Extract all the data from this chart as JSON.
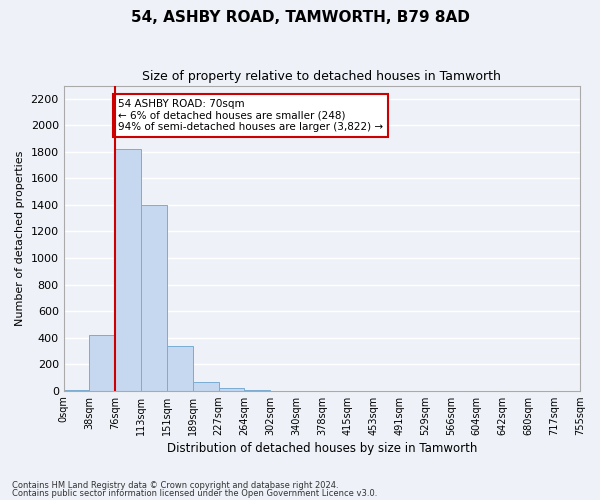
{
  "title": "54, ASHBY ROAD, TAMWORTH, B79 8AD",
  "subtitle": "Size of property relative to detached houses in Tamworth",
  "xlabel": "Distribution of detached houses by size in Tamworth",
  "ylabel": "Number of detached properties",
  "bar_color": "#c5d8f0",
  "bar_edge_color": "#7aadd4",
  "vline_color": "#cc0000",
  "vline_x": 2,
  "annotation_text": "54 ASHBY ROAD: 70sqm\n← 6% of detached houses are smaller (248)\n94% of semi-detached houses are larger (3,822) →",
  "annotation_box_color": "white",
  "annotation_box_edge": "#cc0000",
  "bins": [
    "0sqm",
    "38sqm",
    "76sqm",
    "113sqm",
    "151sqm",
    "189sqm",
    "227sqm",
    "264sqm",
    "302sqm",
    "340sqm",
    "378sqm",
    "415sqm",
    "453sqm",
    "491sqm",
    "529sqm",
    "566sqm",
    "604sqm",
    "642sqm",
    "680sqm",
    "717sqm",
    "755sqm"
  ],
  "values": [
    5,
    420,
    1820,
    1400,
    340,
    65,
    20,
    5,
    0,
    0,
    0,
    0,
    0,
    0,
    0,
    0,
    0,
    0,
    0,
    0
  ],
  "ylim": [
    0,
    2300
  ],
  "yticks": [
    0,
    200,
    400,
    600,
    800,
    1000,
    1200,
    1400,
    1600,
    1800,
    2000,
    2200
  ],
  "footnote1": "Contains HM Land Registry data © Crown copyright and database right 2024.",
  "footnote2": "Contains public sector information licensed under the Open Government Licence v3.0.",
  "background_color": "#eef2f8",
  "grid_color": "white"
}
